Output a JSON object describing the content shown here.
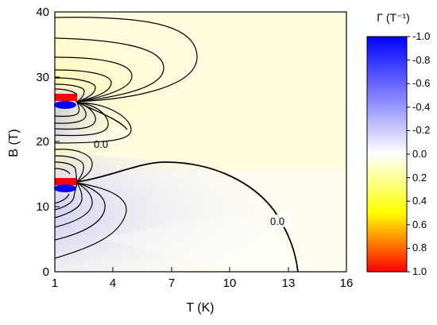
{
  "chart_data": {
    "type": "heatmap",
    "xlabel": "T (K)",
    "ylabel": "B (T)",
    "xlim": [
      1,
      16
    ],
    "ylim": [
      0,
      40
    ],
    "x_ticks": [
      "1",
      "4",
      "7",
      "10",
      "13",
      "16"
    ],
    "y_ticks": [
      "0",
      "10",
      "20",
      "30",
      "40"
    ],
    "colorbar": {
      "title": "Γ (T⁻¹)",
      "ticks": [
        "-1.0",
        "-0.8",
        "-0.6",
        "-0.4",
        "-0.2",
        "0.0",
        "0.2",
        "0.4",
        "0.6",
        "0.8",
        "1.0"
      ],
      "range": [
        -1.0,
        1.0
      ],
      "colors": {
        "negative_end": "#0000ff",
        "zero": "#ffffff",
        "positive_mid": "#ffff00",
        "positive_end": "#ff0000"
      }
    },
    "contour_labels": [
      "0.0",
      "0.0"
    ],
    "features": [
      {
        "B_center": 26.5,
        "sign_below": "negative",
        "sign_above": "positive"
      },
      {
        "B_center": 13.5,
        "sign_below": "negative",
        "sign_above": "positive"
      }
    ],
    "grid": false
  }
}
